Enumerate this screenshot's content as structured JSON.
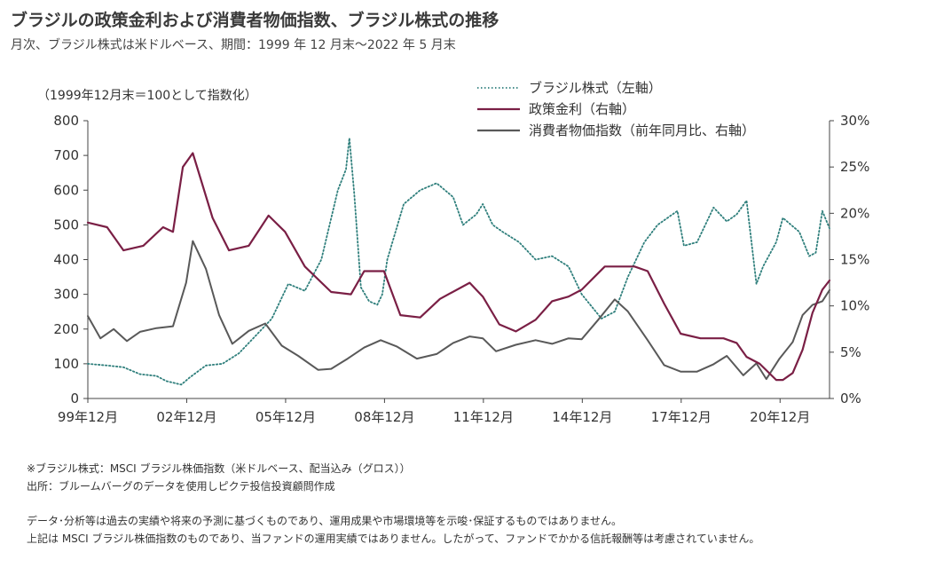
{
  "header": {
    "title": "ブラジルの政策金利および消費者物価指数、ブラジル株式の推移",
    "subtitle": "月次、ブラジル株式は米ドルベース、期間：1999 年 12 月末～2022 年 5 月末"
  },
  "chart_data": {
    "type": "line",
    "left_axis_note": "（1999年12月末＝100として指数化）",
    "x_range": [
      1999.917,
      2022.417
    ],
    "x_ticks": [
      {
        "x": 1999.917,
        "label": "99年12月"
      },
      {
        "x": 2002.917,
        "label": "02年12月"
      },
      {
        "x": 2005.917,
        "label": "05年12月"
      },
      {
        "x": 2008.917,
        "label": "08年12月"
      },
      {
        "x": 2011.917,
        "label": "11年12月"
      },
      {
        "x": 2014.917,
        "label": "14年12月"
      },
      {
        "x": 2017.917,
        "label": "17年12月"
      },
      {
        "x": 2020.917,
        "label": "20年12月"
      }
    ],
    "y_left": {
      "range": [
        0,
        800
      ],
      "ticks": [
        0,
        100,
        200,
        300,
        400,
        500,
        600,
        700,
        800
      ],
      "tick_labels": [
        "0",
        "100",
        "200",
        "300",
        "400",
        "500",
        "600",
        "700",
        "800"
      ]
    },
    "y_right": {
      "range": [
        0,
        30
      ],
      "ticks": [
        0,
        5,
        10,
        15,
        20,
        25,
        30
      ],
      "tick_labels": [
        "0%",
        "5%",
        "10%",
        "15%",
        "20%",
        "25%",
        "30%"
      ]
    },
    "grid": false,
    "legend_position": "top-center",
    "series": [
      {
        "name": "ブラジル株式（左軸）",
        "axis": "left",
        "color": "#2f7f7c",
        "style": "dotted",
        "x": [
          1999.917,
          2000.5,
          2001.0,
          2001.5,
          2002.0,
          2002.3,
          2002.75,
          2003.0,
          2003.5,
          2004.0,
          2004.5,
          2005.0,
          2005.5,
          2006.0,
          2006.5,
          2007.0,
          2007.5,
          2007.75,
          2007.85,
          2008.0,
          2008.2,
          2008.45,
          2008.7,
          2008.85,
          2009.0,
          2009.5,
          2010.0,
          2010.5,
          2011.0,
          2011.3,
          2011.7,
          2011.9,
          2012.2,
          2012.5,
          2013.0,
          2013.5,
          2014.0,
          2014.5,
          2014.9,
          2015.5,
          2015.9,
          2016.3,
          2016.8,
          2017.2,
          2017.8,
          2018.0,
          2018.4,
          2018.9,
          2019.3,
          2019.6,
          2019.9,
          2020.2,
          2020.4,
          2020.8,
          2021.0,
          2021.5,
          2021.8,
          2022.0,
          2022.2,
          2022.417
        ],
        "values": [
          100,
          95,
          90,
          70,
          65,
          50,
          40,
          60,
          95,
          100,
          130,
          180,
          230,
          330,
          310,
          400,
          600,
          660,
          750,
          590,
          320,
          280,
          270,
          300,
          400,
          560,
          600,
          620,
          580,
          500,
          530,
          560,
          500,
          480,
          450,
          400,
          410,
          380,
          300,
          230,
          250,
          350,
          450,
          500,
          540,
          440,
          450,
          550,
          510,
          530,
          570,
          330,
          380,
          450,
          520,
          480,
          410,
          420,
          540,
          490
        ]
      },
      {
        "name": "政策金利（右軸）",
        "axis": "right",
        "color": "#7a1f45",
        "style": "solid",
        "x": [
          1999.917,
          2000.5,
          2001.0,
          2001.6,
          2002.2,
          2002.5,
          2002.8,
          2003.1,
          2003.7,
          2004.2,
          2004.8,
          2005.4,
          2005.9,
          2006.5,
          2007.3,
          2007.9,
          2008.3,
          2008.9,
          2009.4,
          2010.0,
          2010.6,
          2011.5,
          2011.9,
          2012.4,
          2012.9,
          2013.5,
          2014.0,
          2014.5,
          2014.9,
          2015.6,
          2016.0,
          2016.5,
          2016.9,
          2017.4,
          2017.9,
          2018.5,
          2019.2,
          2019.6,
          2019.9,
          2020.3,
          2020.8,
          2021.0,
          2021.3,
          2021.6,
          2021.9,
          2022.2,
          2022.417
        ],
        "values": [
          19,
          18.5,
          16,
          16.5,
          18.5,
          18,
          25,
          26.5,
          19.5,
          16,
          16.5,
          19.75,
          18,
          14.25,
          11.5,
          11.25,
          13.75,
          13.75,
          9,
          8.75,
          10.75,
          12.5,
          11,
          8,
          7.25,
          8.5,
          10.5,
          11,
          11.75,
          14.25,
          14.25,
          14.25,
          13.75,
          10.25,
          7,
          6.5,
          6.5,
          6,
          4.5,
          3.75,
          2,
          2,
          2.75,
          5.25,
          9.25,
          11.75,
          12.75
        ]
      },
      {
        "name": "消費者物価指数（前年同月比、右軸）",
        "axis": "right",
        "color": "#595959",
        "style": "solid",
        "x": [
          1999.917,
          2000.3,
          2000.7,
          2001.1,
          2001.5,
          2002.0,
          2002.5,
          2002.9,
          2003.1,
          2003.5,
          2003.9,
          2004.3,
          2004.8,
          2005.3,
          2005.8,
          2006.3,
          2006.9,
          2007.3,
          2007.8,
          2008.3,
          2008.8,
          2009.3,
          2009.9,
          2010.5,
          2011.0,
          2011.5,
          2011.9,
          2012.3,
          2012.9,
          2013.5,
          2014.0,
          2014.5,
          2014.9,
          2015.4,
          2015.9,
          2016.3,
          2016.9,
          2017.4,
          2017.9,
          2018.4,
          2018.9,
          2019.3,
          2019.8,
          2020.2,
          2020.5,
          2020.9,
          2021.3,
          2021.6,
          2021.9,
          2022.2,
          2022.417
        ],
        "values": [
          8.9,
          6.5,
          7.5,
          6.2,
          7.2,
          7.6,
          7.8,
          12.5,
          17,
          14,
          9,
          5.9,
          7.3,
          8.1,
          5.7,
          4.6,
          3.1,
          3.2,
          4.3,
          5.5,
          6.3,
          5.6,
          4.3,
          4.8,
          6,
          6.7,
          6.5,
          5.1,
          5.8,
          6.3,
          5.9,
          6.5,
          6.4,
          8.5,
          10.7,
          9.4,
          6.3,
          3.6,
          2.9,
          2.9,
          3.7,
          4.6,
          2.5,
          3.8,
          2.1,
          4.3,
          6.1,
          9,
          10.1,
          10.5,
          11.7
        ]
      }
    ]
  },
  "notes": {
    "source_index": "※ブラジル株式：MSCI ブラジル株価指数（米ドルベース、配当込み（グロス））",
    "source": "出所：ブルームバーグのデータを使用しピクテ投信投資顧問作成",
    "disclaimer_1": "データ･分析等は過去の実績や将来の予測に基づくものであり、運用成果や市場環境等を示唆･保証するものではありません。",
    "disclaimer_2": "上記は MSCI ブラジル株価指数のものであり、当ファンドの運用実績ではありません。したがって、ファンドでかかる信託報酬等は考慮されていません。"
  }
}
